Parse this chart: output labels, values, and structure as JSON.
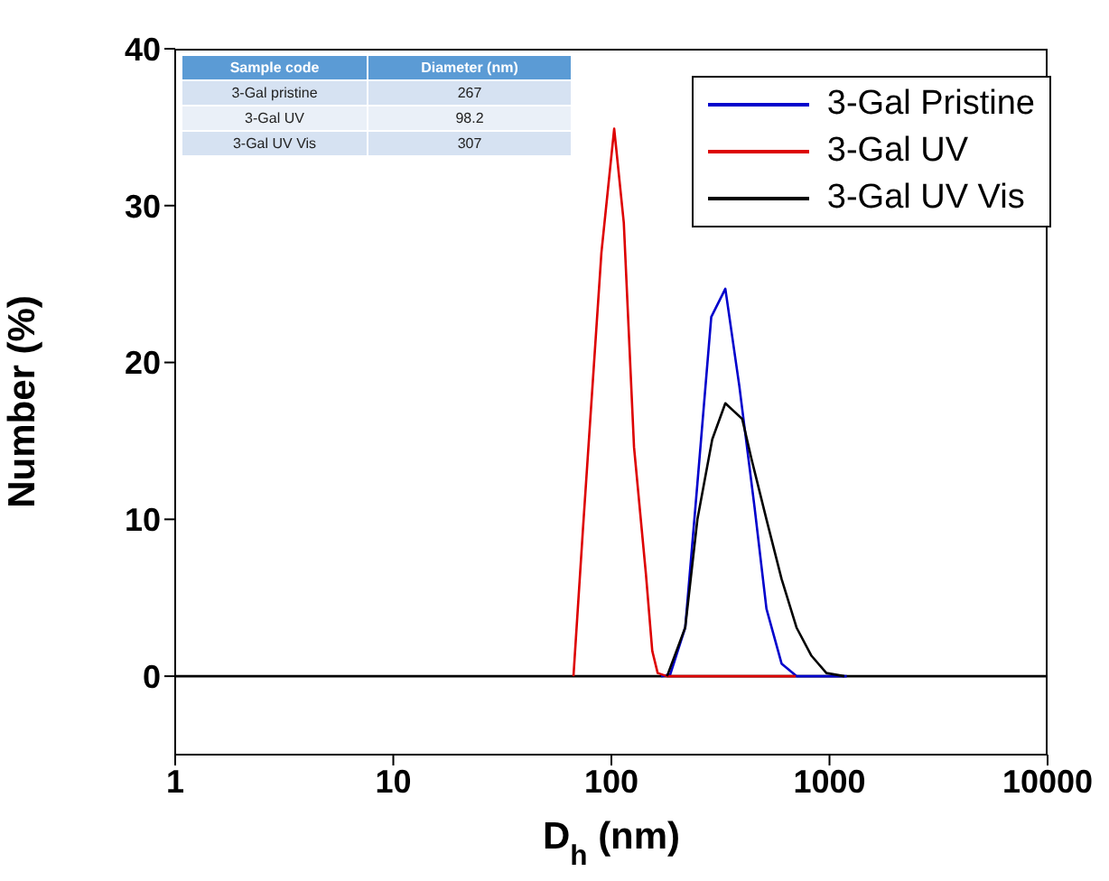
{
  "chart_data": {
    "type": "line",
    "xlabel": "D$_{h}$ (nm)",
    "ylabel": "Number (%)",
    "log": "x",
    "xlim": [
      1,
      10000
    ],
    "xticks": [
      1,
      10,
      100,
      1000,
      10000
    ],
    "ylim": [
      -5,
      40
    ],
    "yticks": [
      0,
      10,
      20,
      30,
      40
    ],
    "legend": "top right",
    "marker": "none",
    "line_style": "solid",
    "ref_lines": [
      {
        "axis": "y",
        "value": 0,
        "color": "#000000"
      }
    ],
    "annotations": [
      "Sample code",
      "Diameter (nm)",
      "3-Gal pristine",
      "267",
      "3-Gal UV",
      "98.2",
      "3-Gal UV Vis",
      "307"
    ],
    "series": [
      {
        "name": "3-Gal Pristine",
        "color": "#0000cc",
        "x": [
          169,
          186,
          218,
          248,
          287,
          333,
          386,
          453,
          514,
          603,
          706,
          1200
        ],
        "values": [
          0,
          0.1,
          3.1,
          12.3,
          22.9,
          24.7,
          18.5,
          10.8,
          4.3,
          0.8,
          0,
          0
        ]
      },
      {
        "name": "3-Gal UV",
        "color": "#dd0000",
        "x": [
          67,
          74,
          90,
          103,
          114,
          127,
          144,
          154,
          163,
          180,
          700
        ],
        "values": [
          0,
          9.3,
          27,
          34.9,
          28.9,
          14.6,
          6.5,
          1.6,
          0.2,
          0,
          0
        ]
      },
      {
        "name": "3-Gal UV Vis",
        "color": "#000000",
        "x": [
          180,
          218,
          248,
          290,
          333,
          398,
          438,
          514,
          603,
          706,
          827,
          968,
          1170
        ],
        "values": [
          0,
          3.1,
          10,
          15.1,
          17.4,
          16.4,
          13.9,
          10,
          6.2,
          3.1,
          1.3,
          0.2,
          0
        ]
      }
    ]
  }
}
